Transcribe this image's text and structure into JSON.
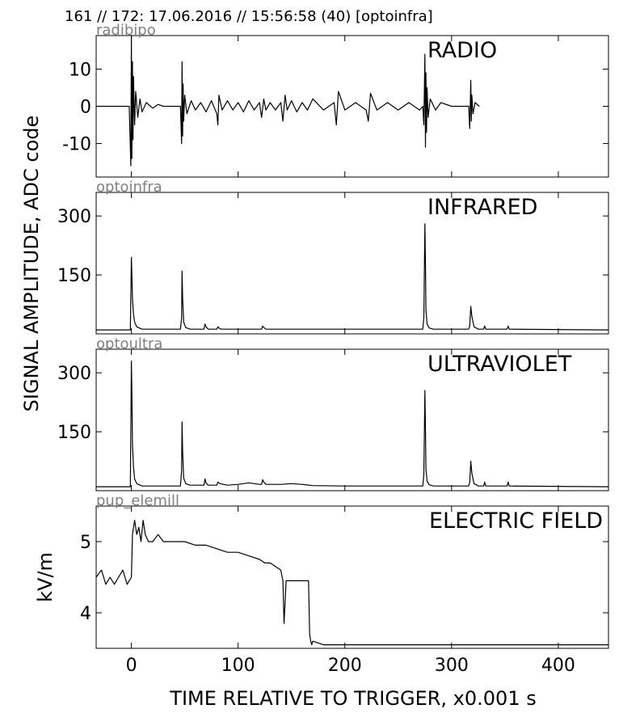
{
  "header": "161 // 172:   17.06.2016 // 15:56:58 (40)  [optoinfra]",
  "ylabel_shared": "SIGNAL AMPLITUDE,  ADC code",
  "xlabel": "TIME RELATIVE TO TRIGGER,   x0.001 s",
  "chart_data": [
    {
      "type": "line",
      "title": "RADIO",
      "source": "radibipo",
      "ylabel": "",
      "xlim": [
        -33,
        447
      ],
      "ylim": [
        -19,
        19
      ],
      "x_ticks": [
        0,
        100,
        200,
        300,
        400
      ],
      "y_ticks": [
        -10,
        0,
        10
      ],
      "y_tick_labels": [
        "-10",
        "0",
        "10"
      ],
      "series": [
        {
          "x": [
            -33,
            -2,
            -0.5,
            0,
            0.5,
            1,
            1.5,
            2,
            3,
            4,
            6,
            8,
            10,
            14,
            20,
            25,
            30,
            40,
            46,
            47,
            47.5,
            48,
            48.5,
            49,
            50,
            52,
            56,
            60,
            65,
            70,
            75,
            80,
            81,
            82,
            85,
            90,
            95,
            100,
            105,
            110,
            115,
            120,
            122,
            124,
            126,
            130,
            135,
            140,
            142,
            144,
            146,
            150,
            155,
            160,
            165,
            170,
            180,
            190,
            192,
            194,
            200,
            210,
            220,
            222,
            224,
            230,
            240,
            250,
            260,
            270,
            273,
            274,
            275,
            275.5,
            276,
            276.5,
            277,
            278,
            280,
            285,
            290,
            300,
            310,
            316,
            317,
            318,
            318.5,
            319,
            320,
            322,
            326
          ],
          "y": [
            0,
            0,
            -16,
            19,
            -14,
            12,
            -9,
            8,
            -5,
            4,
            -3,
            2,
            -1.5,
            1,
            -0.5,
            0.5,
            0,
            0,
            0,
            -10,
            12,
            -8,
            6,
            -4,
            3,
            -2,
            1.5,
            -1,
            1,
            -1.5,
            1.5,
            -2,
            -5,
            3,
            -1,
            1.5,
            -1,
            1,
            -1.5,
            1.5,
            -1,
            1,
            -3,
            2,
            -1,
            1,
            -1,
            1,
            -4,
            3,
            -1,
            1.5,
            -1.5,
            1,
            -1,
            2,
            -1,
            1,
            -5,
            4,
            -1,
            1,
            -1,
            -4,
            3.5,
            -1,
            1,
            -1,
            1,
            -1,
            0,
            -5,
            14,
            -11,
            9,
            -7,
            5,
            -3,
            2,
            -1,
            1,
            0,
            0,
            0,
            -6,
            7,
            -4,
            3,
            -2,
            1,
            0
          ]
        }
      ]
    },
    {
      "type": "line",
      "title": "INFRARED",
      "source": "optoinfra",
      "ylabel": "",
      "xlim": [
        -33,
        447
      ],
      "ylim": [
        0,
        360
      ],
      "x_ticks": [
        0,
        100,
        200,
        300,
        400
      ],
      "y_ticks": [
        150,
        300
      ],
      "y_tick_labels": [
        "150",
        "300"
      ],
      "series": [
        {
          "x": [
            -33,
            -1,
            0,
            0.5,
            1,
            2,
            3,
            5,
            10,
            46,
            47,
            47.5,
            48,
            49,
            51,
            55,
            68,
            69,
            70,
            72,
            80,
            81,
            82,
            84,
            122,
            123,
            124,
            126,
            200,
            273,
            274,
            275,
            275.5,
            276,
            277,
            279,
            283,
            316,
            317,
            318,
            319,
            321,
            325,
            330,
            331,
            332,
            352,
            353,
            354,
            356,
            447
          ],
          "y": [
            10,
            10,
            195,
            150,
            90,
            50,
            30,
            18,
            12,
            12,
            40,
            160,
            90,
            30,
            16,
            12,
            12,
            25,
            18,
            12,
            12,
            18,
            15,
            12,
            12,
            20,
            16,
            12,
            12,
            12,
            40,
            280,
            180,
            60,
            25,
            15,
            12,
            12,
            20,
            70,
            45,
            18,
            12,
            12,
            20,
            12,
            12,
            20,
            12,
            12,
            10
          ]
        }
      ]
    },
    {
      "type": "line",
      "title": "ULTRAVIOLET",
      "source": "optoultra",
      "ylabel": "",
      "xlim": [
        -33,
        447
      ],
      "ylim": [
        0,
        360
      ],
      "x_ticks": [
        0,
        100,
        200,
        300,
        400
      ],
      "y_ticks": [
        150,
        300
      ],
      "y_tick_labels": [
        "150",
        "300"
      ],
      "series": [
        {
          "x": [
            -33,
            -1,
            0,
            0.5,
            1,
            2,
            3,
            5,
            10,
            46,
            47,
            47.5,
            48,
            49,
            51,
            55,
            68,
            69,
            70,
            72,
            80,
            81,
            83,
            90,
            100,
            110,
            115,
            120,
            122,
            123,
            124,
            126,
            140,
            150,
            160,
            170,
            200,
            273,
            274,
            275,
            275.5,
            276,
            277,
            279,
            283,
            316,
            317,
            318,
            319,
            321,
            325,
            330,
            331,
            332,
            352,
            353,
            354,
            356,
            447
          ],
          "y": [
            10,
            10,
            330,
            250,
            120,
            60,
            30,
            18,
            12,
            12,
            50,
            175,
            100,
            32,
            18,
            14,
            14,
            30,
            20,
            14,
            14,
            22,
            18,
            14,
            16,
            20,
            18,
            16,
            16,
            28,
            22,
            16,
            16,
            18,
            16,
            13,
            12,
            12,
            40,
            255,
            160,
            55,
            25,
            15,
            12,
            12,
            22,
            75,
            45,
            18,
            12,
            12,
            22,
            12,
            12,
            22,
            12,
            12,
            10
          ]
        }
      ]
    },
    {
      "type": "line",
      "title": "ELECTRIC FIELD",
      "source": "pup_elemill",
      "ylabel": "kV/m",
      "xlim": [
        -33,
        447
      ],
      "ylim": [
        3.5,
        5.5
      ],
      "x_ticks": [
        0,
        100,
        200,
        300,
        400
      ],
      "y_ticks": [
        4,
        5
      ],
      "y_tick_labels": [
        "4",
        "5"
      ],
      "series": [
        {
          "x": [
            -33,
            -28,
            -24,
            -20,
            -16,
            -12,
            -8,
            -4,
            0,
            1,
            3,
            5,
            7,
            9,
            11,
            13,
            16,
            20,
            25,
            30,
            35,
            40,
            50,
            60,
            70,
            80,
            90,
            100,
            110,
            120,
            125,
            130,
            135,
            140,
            142,
            143,
            145,
            150,
            160,
            166,
            167,
            168,
            169,
            170,
            180,
            200,
            250,
            300,
            350,
            400,
            447
          ],
          "y": [
            4.5,
            4.6,
            4.4,
            4.5,
            4.4,
            4.5,
            4.6,
            4.4,
            4.5,
            5.1,
            5.3,
            5.1,
            5.2,
            5.0,
            5.3,
            5.1,
            5.0,
            5.0,
            5.1,
            5.0,
            5.0,
            5.0,
            5.0,
            4.95,
            4.95,
            4.9,
            4.85,
            4.85,
            4.8,
            4.75,
            4.7,
            4.7,
            4.65,
            4.6,
            4.45,
            3.85,
            4.45,
            4.45,
            4.45,
            4.45,
            3.7,
            3.6,
            3.55,
            3.6,
            3.55,
            3.55,
            3.55,
            3.55,
            3.55,
            3.55,
            3.55
          ]
        }
      ]
    }
  ]
}
